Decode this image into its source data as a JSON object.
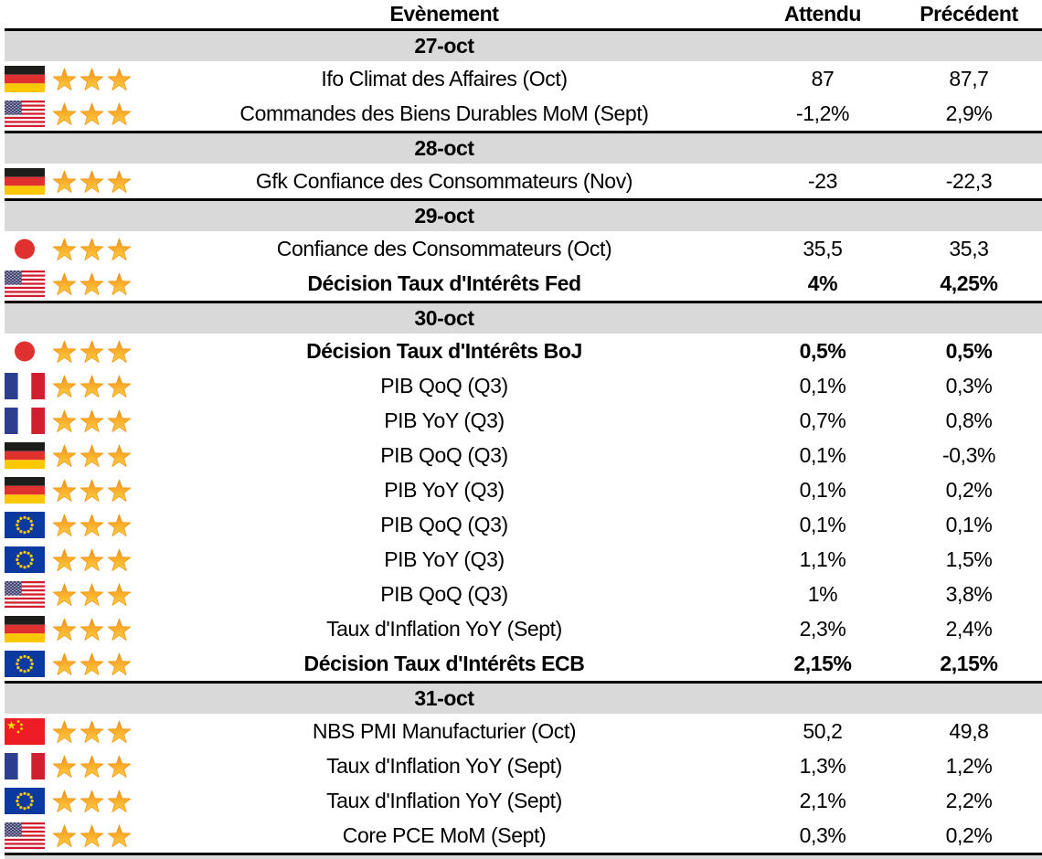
{
  "colors": {
    "date_row_bg": "#d9d9d9",
    "row_border": "#000000",
    "star_top": "#f6921e",
    "star_bottom": "#ffd04a",
    "star_outline": "#ef9511"
  },
  "table": {
    "columns": {
      "event": "Evènement",
      "expected": "Attendu",
      "previous": "Précédent"
    },
    "sections": [
      {
        "date": "27-oct",
        "rows": [
          {
            "flag": "germany",
            "stars": 3,
            "event": "Ifo Climat des Affaires (Oct)",
            "expected": "87",
            "previous": "87,7",
            "bold": false
          },
          {
            "flag": "usa",
            "stars": 3,
            "event": "Commandes des Biens Durables MoM (Sept)",
            "expected": "-1,2%",
            "previous": "2,9%",
            "bold": false
          }
        ]
      },
      {
        "date": "28-oct",
        "rows": [
          {
            "flag": "germany",
            "stars": 3,
            "event": "Gfk Confiance des Consommateurs (Nov)",
            "expected": "-23",
            "previous": "-22,3",
            "bold": false
          }
        ]
      },
      {
        "date": "29-oct",
        "rows": [
          {
            "flag": "japan",
            "stars": 3,
            "event": "Confiance des Consommateurs (Oct)",
            "expected": "35,5",
            "previous": "35,3",
            "bold": false
          },
          {
            "flag": "usa",
            "stars": 3,
            "event": "Décision Taux d'Intérêts Fed",
            "expected": "4%",
            "previous": "4,25%",
            "bold": true
          }
        ]
      },
      {
        "date": "30-oct",
        "rows": [
          {
            "flag": "japan",
            "stars": 3,
            "event": "Décision Taux d'Intérêts BoJ",
            "expected": "0,5%",
            "previous": "0,5%",
            "bold": true
          },
          {
            "flag": "france",
            "stars": 3,
            "event": "PIB QoQ (Q3)",
            "expected": "0,1%",
            "previous": "0,3%",
            "bold": false
          },
          {
            "flag": "france",
            "stars": 3,
            "event": "PIB YoY (Q3)",
            "expected": "0,7%",
            "previous": "0,8%",
            "bold": false
          },
          {
            "flag": "germany",
            "stars": 3,
            "event": "PIB QoQ (Q3)",
            "expected": "0,1%",
            "previous": "-0,3%",
            "bold": false
          },
          {
            "flag": "germany",
            "stars": 3,
            "event": "PIB YoY (Q3)",
            "expected": "0,1%",
            "previous": "0,2%",
            "bold": false
          },
          {
            "flag": "eu",
            "stars": 3,
            "event": "PIB QoQ (Q3)",
            "expected": "0,1%",
            "previous": "0,1%",
            "bold": false
          },
          {
            "flag": "eu",
            "stars": 3,
            "event": "PIB YoY (Q3)",
            "expected": "1,1%",
            "previous": "1,5%",
            "bold": false
          },
          {
            "flag": "usa",
            "stars": 3,
            "event": "PIB QoQ (Q3)",
            "expected": "1%",
            "previous": "3,8%",
            "bold": false
          },
          {
            "flag": "germany",
            "stars": 3,
            "event": "Taux d'Inflation YoY (Sept)",
            "expected": "2,3%",
            "previous": "2,4%",
            "bold": false
          },
          {
            "flag": "eu",
            "stars": 3,
            "event": "Décision Taux d'Intérêts ECB",
            "expected": "2,15%",
            "previous": "2,15%",
            "bold": true
          }
        ]
      },
      {
        "date": "31-oct",
        "rows": [
          {
            "flag": "china",
            "stars": 3,
            "event": "NBS PMI Manufacturier (Oct)",
            "expected": "50,2",
            "previous": "49,8",
            "bold": false
          },
          {
            "flag": "france",
            "stars": 3,
            "event": "Taux d'Inflation YoY (Sept)",
            "expected": "1,3%",
            "previous": "1,2%",
            "bold": false
          },
          {
            "flag": "eu",
            "stars": 3,
            "event": "Taux d'Inflation YoY (Sept)",
            "expected": "2,1%",
            "previous": "2,2%",
            "bold": false
          },
          {
            "flag": "usa",
            "stars": 3,
            "event": "Core PCE MoM (Sept)",
            "expected": "0,3%",
            "previous": "0,2%",
            "bold": false
          }
        ]
      }
    ]
  }
}
